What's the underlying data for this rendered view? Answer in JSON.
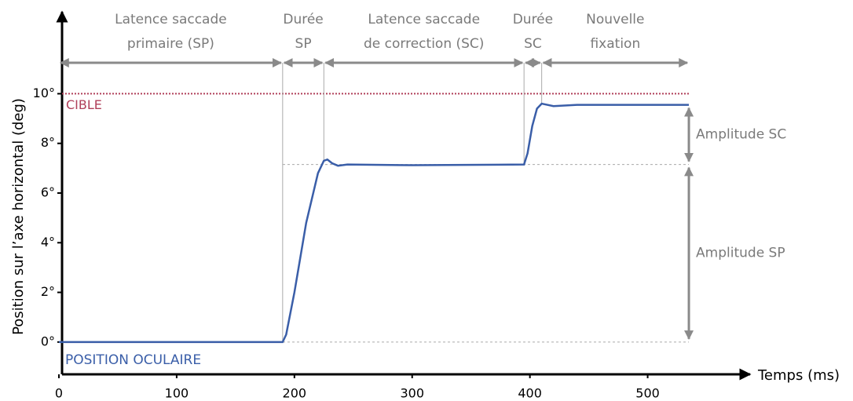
{
  "chart_data": {
    "type": "line",
    "ylabel": "Position sur l’axe horizontal (deg)",
    "xlabel": "Temps (ms)",
    "xlim": [
      0,
      587
    ],
    "ylim": [
      -1.3,
      13.3
    ],
    "xticks": [
      0,
      100,
      200,
      300,
      400,
      500
    ],
    "yticks": [
      {
        "value": 0,
        "label": "0°"
      },
      {
        "value": 2,
        "label": "2°"
      },
      {
        "value": 4,
        "label": "4°"
      },
      {
        "value": 6,
        "label": "6°"
      },
      {
        "value": 8,
        "label": "8°"
      },
      {
        "value": 10,
        "label": "10°"
      }
    ],
    "series": [
      {
        "name": "POSITION OCULAIRE",
        "color": "#3a5ea8",
        "x": [
          0,
          190,
          193,
          200,
          210,
          220,
          225,
          228,
          232,
          237,
          245,
          300,
          395,
          398,
          402,
          406,
          410,
          420,
          440,
          535
        ],
        "values": [
          0,
          0,
          0.3,
          2,
          4.8,
          6.8,
          7.3,
          7.35,
          7.2,
          7.1,
          7.15,
          7.12,
          7.15,
          7.6,
          8.7,
          9.4,
          9.6,
          9.5,
          9.55,
          9.55
        ]
      }
    ],
    "target": {
      "label": "CIBLE",
      "value": 10,
      "color": "#b0405a"
    },
    "phases": [
      {
        "label": [
          "Latence saccade",
          "primaire (SP)"
        ],
        "start": 0,
        "end": 190
      },
      {
        "label": [
          "Durée",
          "SP"
        ],
        "start": 190,
        "end": 225
      },
      {
        "label": [
          "Latence saccade",
          "de correction (SC)"
        ],
        "start": 225,
        "end": 395
      },
      {
        "label": [
          "Durée",
          "SC"
        ],
        "start": 395,
        "end": 410
      },
      {
        "label": [
          "Nouvelle",
          "fixation"
        ],
        "start": 410,
        "end": 535
      }
    ],
    "amplitudes": [
      {
        "label": "Amplitude SC",
        "from": 7.15,
        "to": 9.55
      },
      {
        "label": "Amplitude SP",
        "from": 0,
        "to": 7.15
      }
    ]
  }
}
